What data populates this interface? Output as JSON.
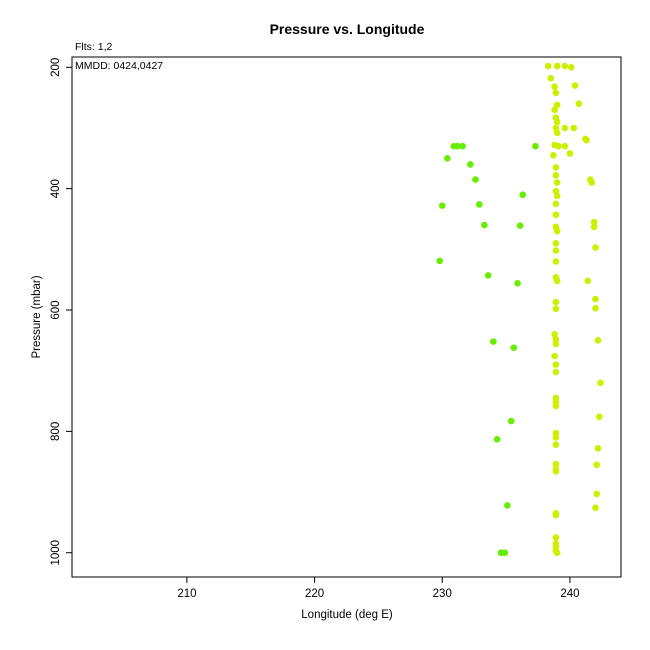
{
  "chart_data": {
    "type": "scatter",
    "title": "Pressure vs. Longitude",
    "xlabel": "Longitude (deg E)",
    "ylabel": "Pressure (mbar)",
    "annotations": [
      "Flts: 1,2",
      "MMDD: 0424,0427"
    ],
    "xlim": [
      201,
      244
    ],
    "ylim": [
      1040,
      183
    ],
    "y_reversed": true,
    "x_ticks": [
      210,
      220,
      230,
      240
    ],
    "y_ticks": [
      200,
      400,
      600,
      800,
      1000
    ],
    "grid": false,
    "series": [
      {
        "color": "#66ee00",
        "points": [
          [
            230.4,
            350
          ],
          [
            230.9,
            330
          ],
          [
            231.2,
            330
          ],
          [
            231.6,
            330
          ],
          [
            232.2,
            360
          ],
          [
            232.6,
            385
          ],
          [
            230.0,
            428
          ],
          [
            232.9,
            426
          ],
          [
            233.3,
            460
          ],
          [
            236.3,
            410
          ],
          [
            236.1,
            461
          ],
          [
            237.3,
            330
          ],
          [
            229.8,
            519
          ],
          [
            233.6,
            543
          ],
          [
            235.9,
            556
          ],
          [
            234.0,
            652
          ],
          [
            235.6,
            662
          ],
          [
            235.4,
            783
          ],
          [
            234.3,
            813
          ],
          [
            235.1,
            922
          ],
          [
            234.6,
            1000
          ],
          [
            234.9,
            1000
          ]
        ]
      },
      {
        "color": "#ccf000",
        "points": [
          [
            238.3,
            198
          ],
          [
            238.5,
            218
          ],
          [
            238.8,
            232
          ],
          [
            238.9,
            242
          ],
          [
            238.8,
            270
          ],
          [
            239.0,
            262
          ],
          [
            238.9,
            283
          ],
          [
            239.0,
            290
          ],
          [
            238.9,
            300
          ],
          [
            239.0,
            308
          ],
          [
            238.8,
            328
          ],
          [
            239.1,
            330
          ],
          [
            238.7,
            345
          ],
          [
            238.9,
            365
          ],
          [
            238.9,
            378
          ],
          [
            239.0,
            390
          ],
          [
            238.9,
            404
          ],
          [
            239.0,
            412
          ],
          [
            238.9,
            425
          ],
          [
            238.9,
            443
          ],
          [
            238.9,
            463
          ],
          [
            239.0,
            470
          ],
          [
            238.9,
            490
          ],
          [
            238.9,
            502
          ],
          [
            238.9,
            520
          ],
          [
            238.9,
            546
          ],
          [
            239.0,
            552
          ],
          [
            238.9,
            587
          ],
          [
            238.9,
            598
          ],
          [
            238.8,
            640
          ],
          [
            238.9,
            648
          ],
          [
            238.9,
            656
          ],
          [
            238.8,
            676
          ],
          [
            238.9,
            690
          ],
          [
            238.9,
            702
          ],
          [
            238.9,
            745
          ],
          [
            238.9,
            752
          ],
          [
            238.9,
            758
          ],
          [
            238.9,
            803
          ],
          [
            238.9,
            810
          ],
          [
            238.9,
            822
          ],
          [
            238.9,
            854
          ],
          [
            238.9,
            862
          ],
          [
            238.9,
            866
          ],
          [
            238.9,
            935
          ],
          [
            238.9,
            938
          ],
          [
            238.9,
            975
          ],
          [
            238.9,
            985
          ],
          [
            238.9,
            991
          ],
          [
            238.9,
            997
          ],
          [
            239.0,
            1000
          ],
          [
            239.0,
            198
          ],
          [
            239.6,
            198
          ],
          [
            240.1,
            200
          ],
          [
            240.4,
            230
          ],
          [
            240.7,
            260
          ],
          [
            240.3,
            300
          ],
          [
            239.6,
            300
          ],
          [
            239.6,
            330
          ],
          [
            240.0,
            342
          ],
          [
            241.2,
            318
          ],
          [
            241.3,
            320
          ],
          [
            241.6,
            385
          ],
          [
            241.7,
            390
          ],
          [
            241.9,
            455
          ],
          [
            241.9,
            463
          ],
          [
            242.0,
            497
          ],
          [
            241.4,
            552
          ],
          [
            242.0,
            582
          ],
          [
            242.0,
            597
          ],
          [
            242.2,
            650
          ],
          [
            242.4,
            720
          ],
          [
            242.3,
            776
          ],
          [
            242.2,
            828
          ],
          [
            242.1,
            855
          ],
          [
            242.1,
            903
          ],
          [
            242.0,
            926
          ]
        ]
      }
    ]
  }
}
